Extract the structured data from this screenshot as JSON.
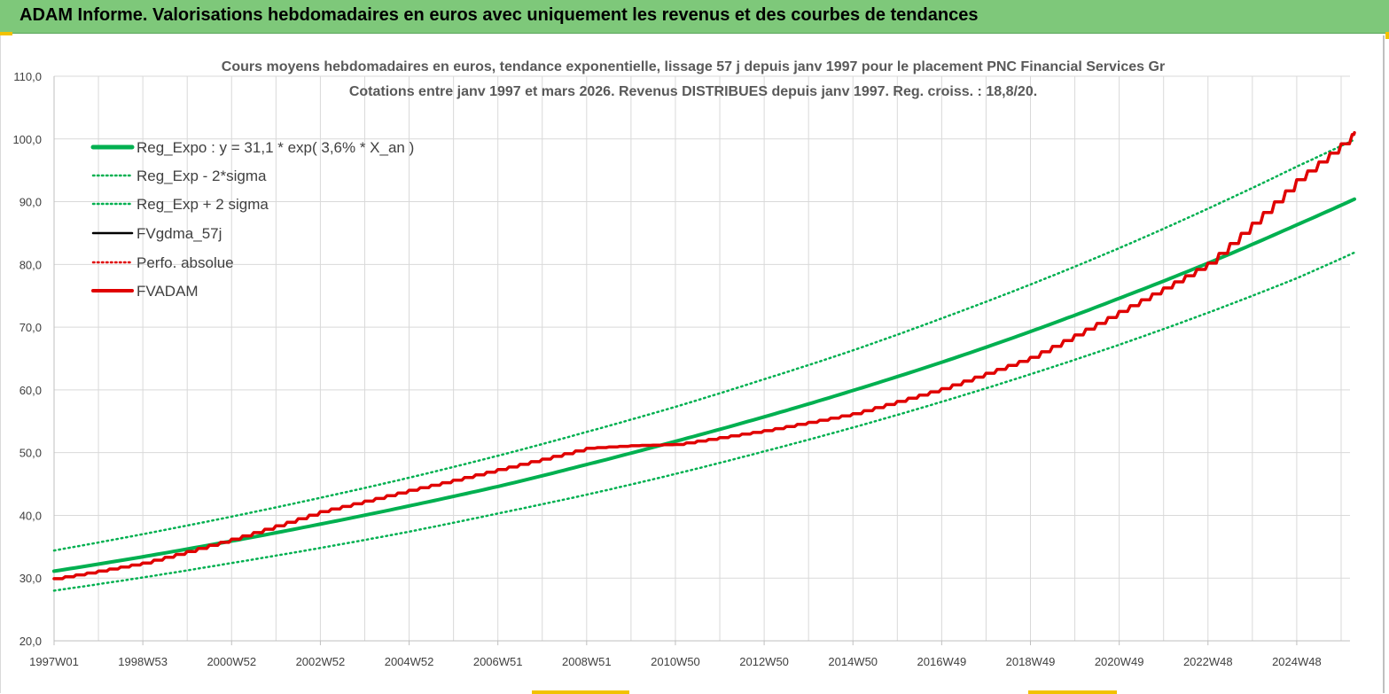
{
  "banner": {
    "title": "ADAM Informe. Valorisations hebdomadaires en euros avec uniquement les revenus et des courbes de tendances"
  },
  "colors": {
    "banner_bg": "#7ec87a",
    "accent": "#f2c200",
    "trend": "#00b050",
    "adam": "#e00000",
    "black": "#000000"
  },
  "chart_data": {
    "type": "line",
    "title": "Cours moyens hebdomadaires en euros, tendance exponentielle, lissage 57 j depuis janv 1997 pour le placement PNC Financial Services Gr",
    "subtitle": "Cotations entre janv 1997 et mars 2026. Revenus DISTRIBUES depuis janv 1997. Reg. croiss. : 18,8/20.",
    "ylim": [
      20,
      110
    ],
    "y_ticks": [
      "20,0",
      "30,0",
      "40,0",
      "50,0",
      "60,0",
      "70,0",
      "80,0",
      "90,0",
      "100,0",
      "110,0"
    ],
    "x_range": [
      1997.0,
      2026.2
    ],
    "x_ticks": [
      {
        "label": "1997W01",
        "x": 1997.0
      },
      {
        "label": "1998W53",
        "x": 1999.0
      },
      {
        "label": "2000W52",
        "x": 2001.0
      },
      {
        "label": "2002W52",
        "x": 2003.0
      },
      {
        "label": "2004W52",
        "x": 2005.0
      },
      {
        "label": "2006W51",
        "x": 2007.0
      },
      {
        "label": "2008W51",
        "x": 2009.0
      },
      {
        "label": "2010W50",
        "x": 2011.0
      },
      {
        "label": "2012W50",
        "x": 2013.0
      },
      {
        "label": "2014W50",
        "x": 2015.0
      },
      {
        "label": "2016W49",
        "x": 2017.0
      },
      {
        "label": "2018W49",
        "x": 2019.0
      },
      {
        "label": "2020W49",
        "x": 2021.0
      },
      {
        "label": "2022W48",
        "x": 2023.0
      },
      {
        "label": "2024W48",
        "x": 2025.0
      }
    ],
    "grid": true,
    "legend_position": "top-left",
    "series": [
      {
        "name": "Reg_Expo : y = 31,1 * exp( 3,6% *  X_an )",
        "style": "solid-thick",
        "color": "#00b050",
        "points": [
          [
            1997.0,
            31.1
          ],
          [
            1999.0,
            33.4
          ],
          [
            2001.0,
            35.9
          ],
          [
            2003.0,
            38.6
          ],
          [
            2005.0,
            41.5
          ],
          [
            2007.0,
            44.6
          ],
          [
            2009.0,
            48.1
          ],
          [
            2011.0,
            51.8
          ],
          [
            2013.0,
            55.7
          ],
          [
            2015.0,
            59.9
          ],
          [
            2017.0,
            64.4
          ],
          [
            2019.0,
            69.3
          ],
          [
            2021.0,
            74.6
          ],
          [
            2023.0,
            80.2
          ],
          [
            2025.0,
            86.3
          ],
          [
            2026.3,
            90.4
          ]
        ]
      },
      {
        "name": "Reg_Exp - 2*sigma",
        "style": "dotted",
        "color": "#00b050",
        "points": [
          [
            1997.0,
            28.0
          ],
          [
            1999.0,
            30.1
          ],
          [
            2001.0,
            32.4
          ],
          [
            2003.0,
            34.8
          ],
          [
            2005.0,
            37.4
          ],
          [
            2007.0,
            40.3
          ],
          [
            2009.0,
            43.3
          ],
          [
            2011.0,
            46.6
          ],
          [
            2013.0,
            50.2
          ],
          [
            2015.0,
            54.0
          ],
          [
            2017.0,
            58.1
          ],
          [
            2019.0,
            62.5
          ],
          [
            2021.0,
            67.2
          ],
          [
            2023.0,
            72.3
          ],
          [
            2025.0,
            77.8
          ],
          [
            2026.3,
            81.9
          ]
        ]
      },
      {
        "name": "Reg_Exp + 2 sigma",
        "style": "dotted",
        "color": "#00b050",
        "points": [
          [
            1997.0,
            34.4
          ],
          [
            1999.0,
            37.0
          ],
          [
            2001.0,
            39.8
          ],
          [
            2003.0,
            42.8
          ],
          [
            2005.0,
            46.0
          ],
          [
            2007.0,
            49.5
          ],
          [
            2009.0,
            53.3
          ],
          [
            2011.0,
            57.3
          ],
          [
            2013.0,
            61.7
          ],
          [
            2015.0,
            66.3
          ],
          [
            2017.0,
            71.4
          ],
          [
            2019.0,
            76.8
          ],
          [
            2021.0,
            82.6
          ],
          [
            2023.0,
            88.9
          ],
          [
            2025.0,
            95.6
          ],
          [
            2026.3,
            99.9
          ]
        ]
      },
      {
        "name": "FVgdma_57j",
        "style": "solid",
        "color": "#000000",
        "points": []
      },
      {
        "name": "Perfo. absolue",
        "style": "dotted",
        "color": "#e00000",
        "points": []
      },
      {
        "name": "FVADAM",
        "style": "solid-thick-stepped",
        "color": "#e00000",
        "points": [
          [
            1997.0,
            29.9
          ],
          [
            1999.0,
            32.4
          ],
          [
            2001.0,
            36.2
          ],
          [
            2003.0,
            40.6
          ],
          [
            2005.0,
            44.0
          ],
          [
            2007.0,
            47.3
          ],
          [
            2009.0,
            50.7
          ],
          [
            2010.0,
            51.1
          ],
          [
            2011.0,
            51.3
          ],
          [
            2013.0,
            53.5
          ],
          [
            2015.0,
            56.2
          ],
          [
            2017.0,
            60.2
          ],
          [
            2019.0,
            65.2
          ],
          [
            2021.0,
            72.5
          ],
          [
            2023.0,
            80.2
          ],
          [
            2025.0,
            93.5
          ],
          [
            2026.3,
            101.0
          ]
        ]
      }
    ]
  }
}
